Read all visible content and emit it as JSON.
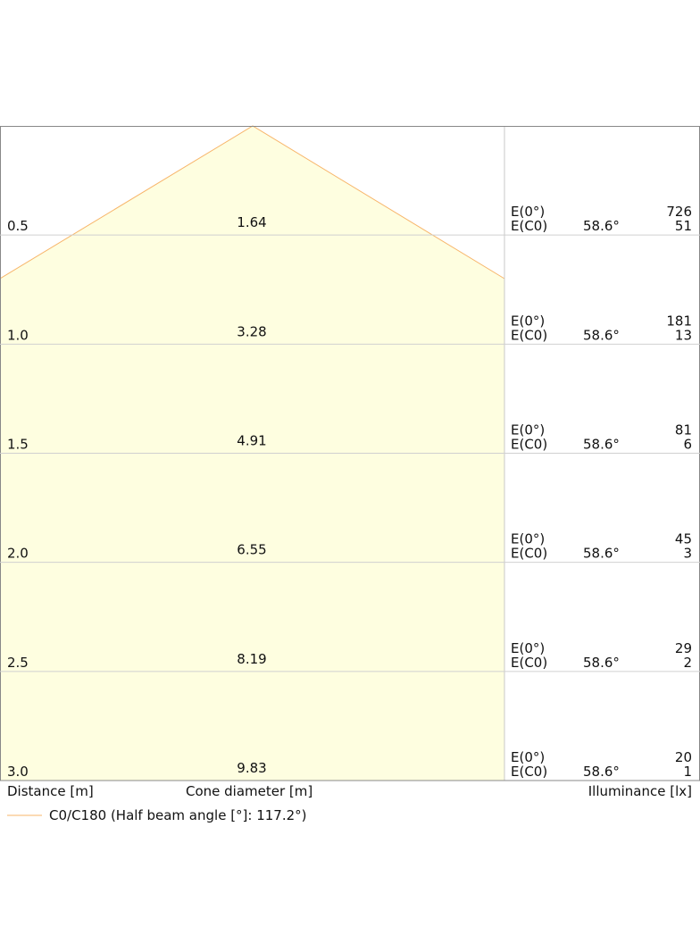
{
  "rows": [
    {
      "distance": "0.5",
      "diameter": "1.64",
      "e0_label": "E(0°)",
      "ec0_label": "E(C0)",
      "angle": "58.6°",
      "e0": "726",
      "ec0": "51"
    },
    {
      "distance": "1.0",
      "diameter": "3.28",
      "e0_label": "E(0°)",
      "ec0_label": "E(C0)",
      "angle": "58.6°",
      "e0": "181",
      "ec0": "13"
    },
    {
      "distance": "1.5",
      "diameter": "4.91",
      "e0_label": "E(0°)",
      "ec0_label": "E(C0)",
      "angle": "58.6°",
      "e0": "81",
      "ec0": "6"
    },
    {
      "distance": "2.0",
      "diameter": "6.55",
      "e0_label": "E(0°)",
      "ec0_label": "E(C0)",
      "angle": "58.6°",
      "e0": "45",
      "ec0": "3"
    },
    {
      "distance": "2.5",
      "diameter": "8.19",
      "e0_label": "E(0°)",
      "ec0_label": "E(C0)",
      "angle": "58.6°",
      "e0": "29",
      "ec0": "2"
    },
    {
      "distance": "3.0",
      "diameter": "9.83",
      "e0_label": "E(0°)",
      "ec0_label": "E(C0)",
      "angle": "58.6°",
      "e0": "20",
      "ec0": "1"
    }
  ],
  "footer": {
    "distance": "Distance [m]",
    "diameter": "Cone diameter [m]",
    "illuminance": "Illuminance [lx]"
  },
  "legend": {
    "label": "C0/C180 (Half beam angle [°]: 117.2°)"
  }
}
